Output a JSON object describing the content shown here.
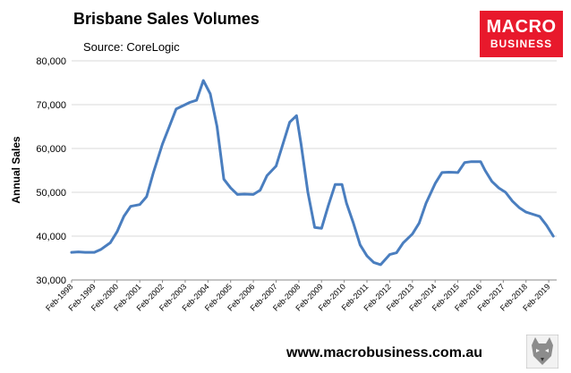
{
  "header": {
    "title": "Brisbane Sales Volumes",
    "source": "Source: CoreLogic"
  },
  "logo": {
    "line1": "MACRO",
    "line2": "BUSINESS",
    "color": "#e8192c"
  },
  "footer": {
    "url": "www.macrobusiness.com.au"
  },
  "chart_data": {
    "type": "line",
    "title": "Brisbane Sales Volumes",
    "ylabel": "Annual Sales",
    "xlabel": "",
    "ylim": [
      30000,
      80000
    ],
    "yticks": [
      "30,000",
      "40,000",
      "50,000",
      "60,000",
      "70,000",
      "80,000"
    ],
    "xticks": [
      "Feb-1998",
      "Feb-1999",
      "Feb-2000",
      "Feb-2001",
      "Feb-2002",
      "Feb-2003",
      "Feb-2004",
      "Feb-2005",
      "Feb-2006",
      "Feb-2007",
      "Feb-2008",
      "Feb-2009",
      "Feb-2010",
      "Feb-2011",
      "Feb-2012",
      "Feb-2013",
      "Feb-2014",
      "Feb-2015",
      "Feb-2016",
      "Feb-2017",
      "Feb-2018",
      "Feb-2019"
    ],
    "line_color": "#4a7ebf",
    "grid": true,
    "series": [
      {
        "name": "",
        "x": [
          1998.0,
          1998.3,
          1998.6,
          1999.0,
          1999.3,
          1999.7,
          2000.0,
          2000.3,
          2000.6,
          2001.0,
          2001.3,
          2001.6,
          2002.0,
          2002.3,
          2002.6,
          2003.0,
          2003.2,
          2003.5,
          2003.8,
          2004.1,
          2004.4,
          2004.7,
          2005.0,
          2005.3,
          2005.6,
          2006.0,
          2006.3,
          2006.6,
          2007.0,
          2007.3,
          2007.6,
          2007.9,
          2008.1,
          2008.4,
          2008.7,
          2009.0,
          2009.3,
          2009.6,
          2009.9,
          2010.1,
          2010.4,
          2010.7,
          2011.0,
          2011.3,
          2011.6,
          2012.0,
          2012.3,
          2012.6,
          2013.0,
          2013.3,
          2013.6,
          2014.0,
          2014.3,
          2014.6,
          2015.0,
          2015.3,
          2015.6,
          2016.0,
          2016.2,
          2016.5,
          2016.8,
          2017.1,
          2017.4,
          2017.7,
          2018.0,
          2018.3,
          2018.6,
          2018.9,
          2019.2
        ],
        "y": [
          36300,
          36400,
          36300,
          36300,
          37000,
          38500,
          41000,
          44500,
          46800,
          47200,
          49000,
          54500,
          61000,
          65000,
          69000,
          70000,
          70500,
          71000,
          75500,
          72500,
          65000,
          53000,
          51000,
          49500,
          49600,
          49500,
          50500,
          53800,
          56000,
          61000,
          66000,
          67500,
          61000,
          50000,
          42000,
          41800,
          47000,
          51800,
          51800,
          47500,
          43000,
          38000,
          35500,
          34000,
          33500,
          35800,
          36200,
          38500,
          40500,
          43000,
          47500,
          52000,
          54500,
          54600,
          54500,
          56800,
          57000,
          57000,
          55000,
          52500,
          51000,
          50000,
          48000,
          46500,
          45500,
          45000,
          44500,
          42500,
          40000
        ]
      }
    ]
  }
}
